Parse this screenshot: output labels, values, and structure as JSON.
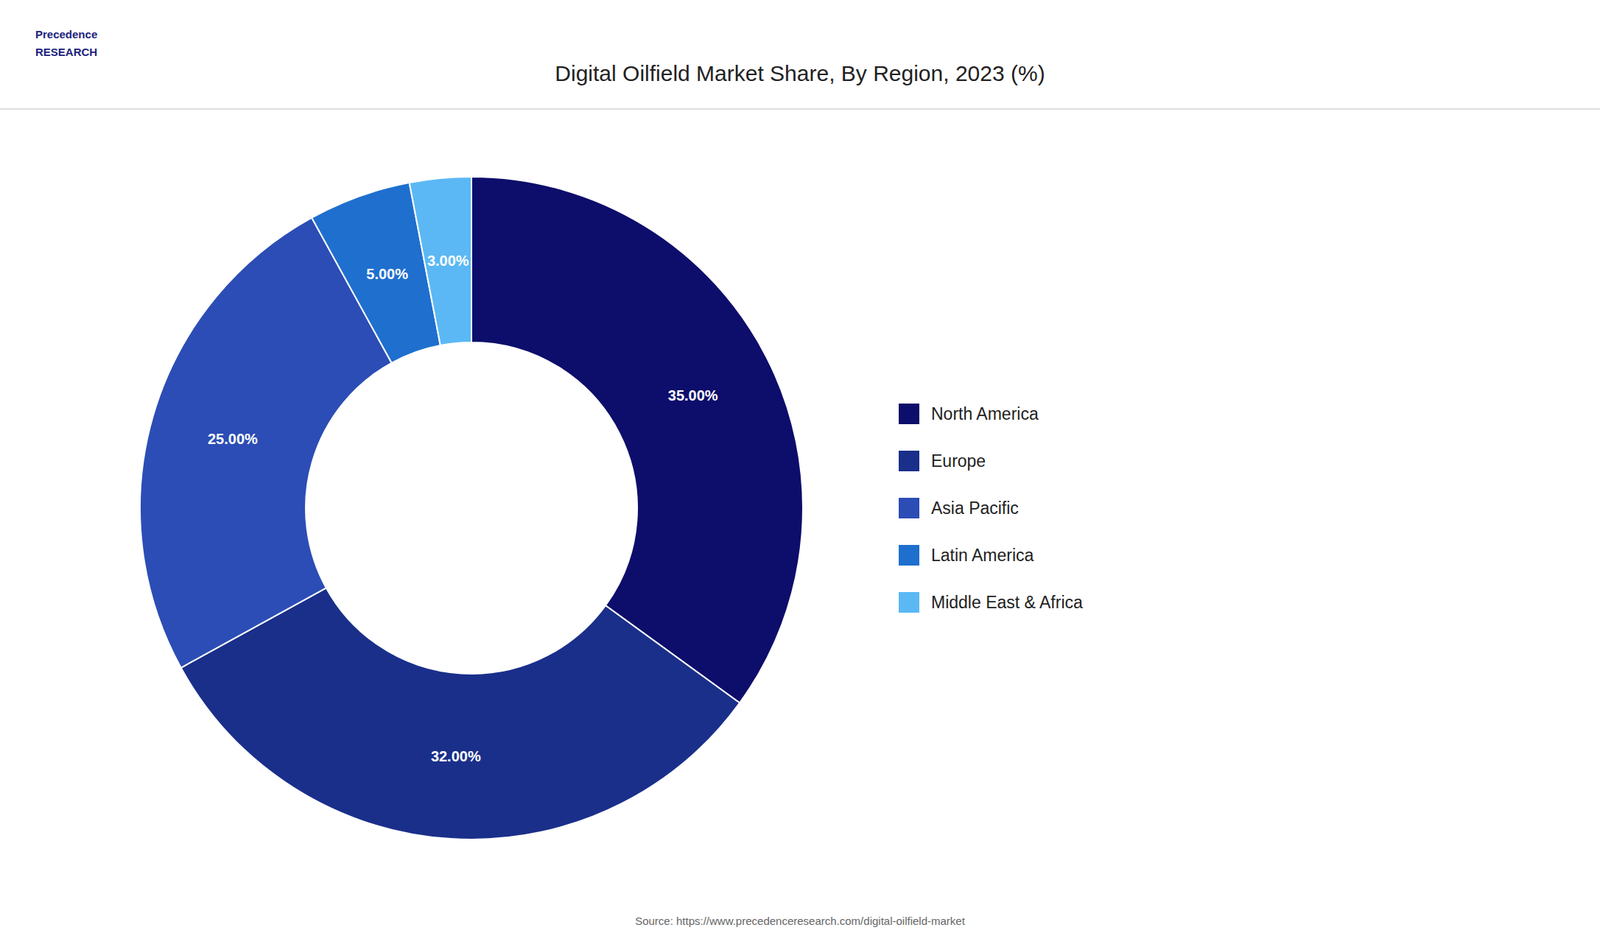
{
  "chart_data": {
    "type": "donut",
    "title": "Digital Oilfield Market Share, By Region, 2023 (%)",
    "categories": [
      "North America",
      "Europe",
      "Asia Pacific",
      "Latin America",
      "Middle East & Africa"
    ],
    "values": [
      35.0,
      32.0,
      25.0,
      5.0,
      3.0
    ],
    "value_labels": [
      "35.00%",
      "32.00%",
      "25.00%",
      "5.00%",
      "3.00%"
    ],
    "colors": [
      "#0d0d6b",
      "#1a2f8a",
      "#2b4db5",
      "#1f6fce",
      "#5bb8f5"
    ],
    "data_labels": true,
    "legend": "right",
    "annotations": [
      "Precedence\nRESEARCH",
      "Source: https://www.precedenceresearch.com/digital-oilfield-market"
    ]
  }
}
